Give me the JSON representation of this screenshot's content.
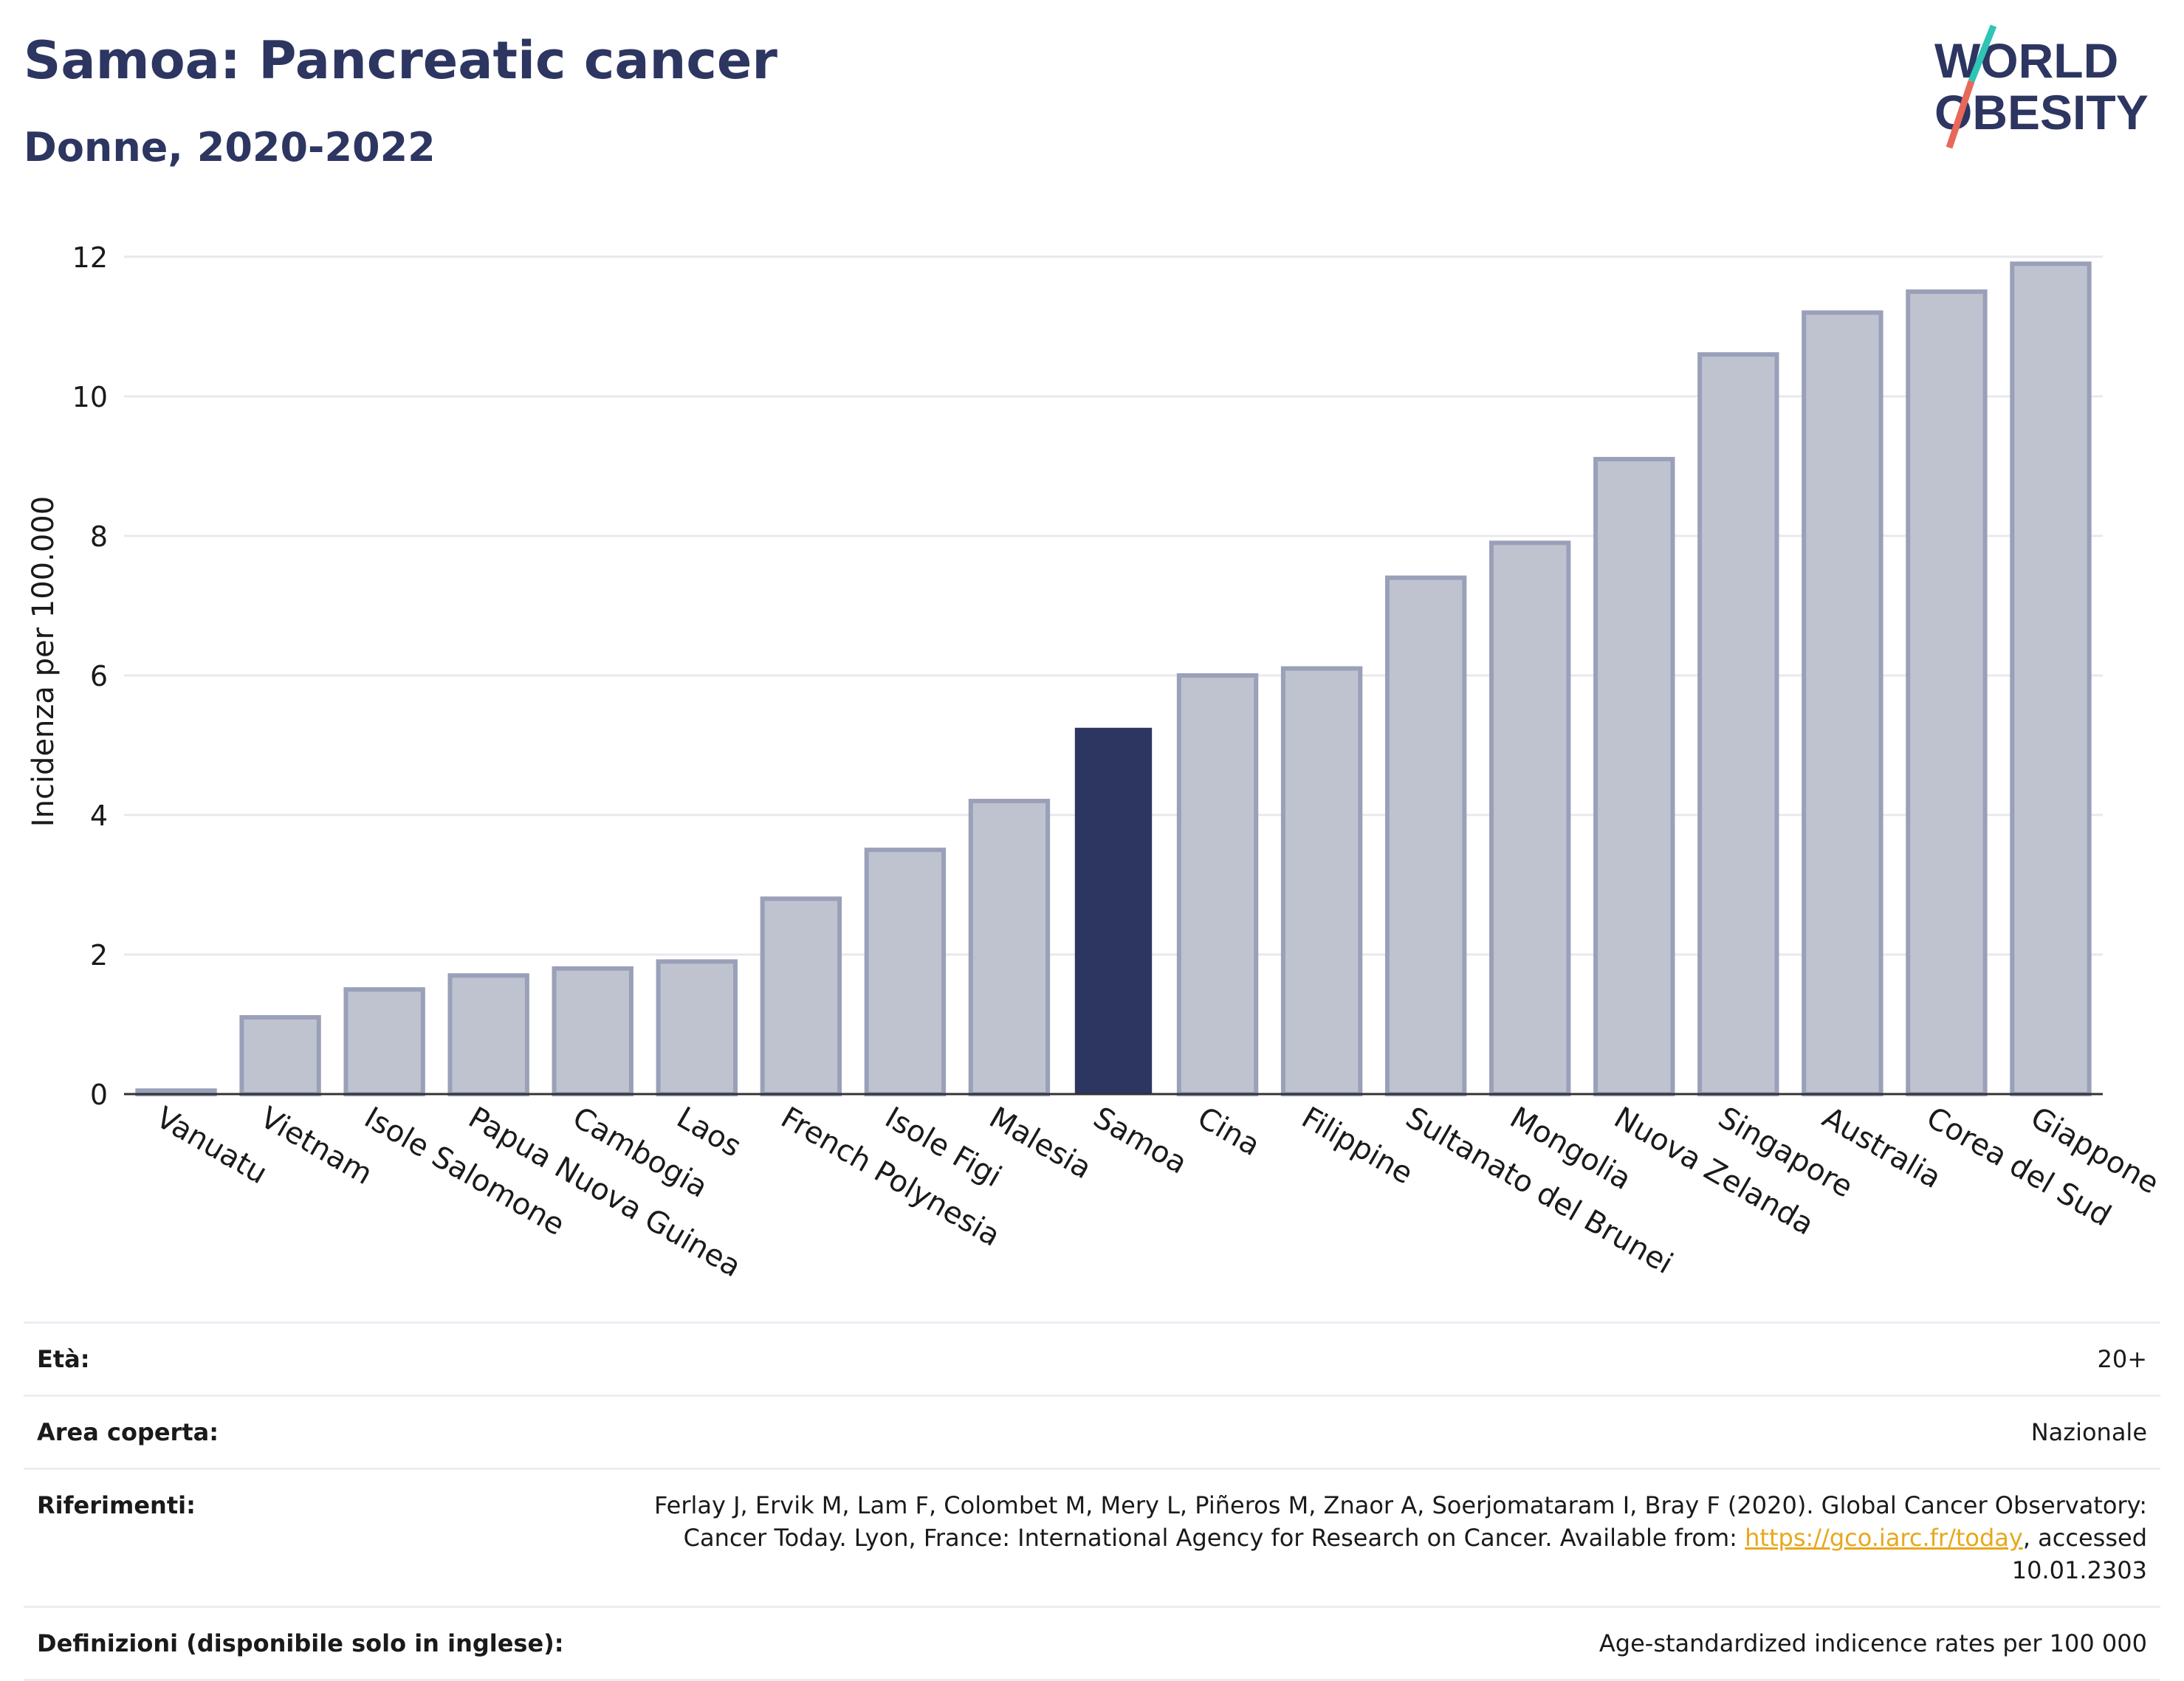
{
  "header": {
    "title": "Samoa: Pancreatic cancer",
    "subtitle": "Donne, 2020-2022"
  },
  "logo": {
    "line1": "WORLD",
    "line2": "OBESITY"
  },
  "colors": {
    "highlight": "#2d3561",
    "bar": "#bfc3d0",
    "bar_edge": "#9aa0b8",
    "accent_teal": "#2ec4b6",
    "accent_red": "#e8685a"
  },
  "chart_data": {
    "type": "bar",
    "ylabel": "Incidenza per 100.000",
    "ylim": [
      0,
      12.4
    ],
    "yticks": [
      0,
      2,
      4,
      6,
      8,
      10,
      12
    ],
    "grid": true,
    "highlight": "Samoa",
    "categories": [
      "Vanuatu",
      "Vietnam",
      "Isole Salomone",
      "Papua Nuova Guinea",
      "Cambogia",
      "Laos",
      "French Polynesia",
      "Isole Figi",
      "Malesia",
      "Samoa",
      "Cina",
      "Filippine",
      "Sultanato del Brunei",
      "Mongolia",
      "Nuova Zelanda",
      "Singapore",
      "Australia",
      "Corea del Sud",
      "Giappone"
    ],
    "values": [
      0.05,
      1.1,
      1.5,
      1.7,
      1.8,
      1.9,
      2.8,
      3.5,
      4.2,
      5.25,
      6.0,
      6.1,
      7.4,
      7.9,
      9.1,
      10.6,
      11.2,
      11.5,
      11.9
    ]
  },
  "info": {
    "age_label": "Età:",
    "age_value": "20+",
    "area_label": "Area coperta:",
    "area_value": "Nazionale",
    "refs_label": "Riferimenti:",
    "refs_text": "Ferlay J, Ervik M, Lam F, Colombet M, Mery L, Piñeros M, Znaor A, Soerjomataram I, Bray F (2020). Global Cancer Observatory: Cancer Today. Lyon, France: International Agency for Research on Cancer. Available from: ",
    "refs_link": "https://gco.iarc.fr/today",
    "refs_suffix": ", accessed 10.01.2303",
    "defs_label": "Definizioni (disponibile solo in inglese):",
    "defs_value": "Age-standardized indicence rates per 100 000"
  }
}
